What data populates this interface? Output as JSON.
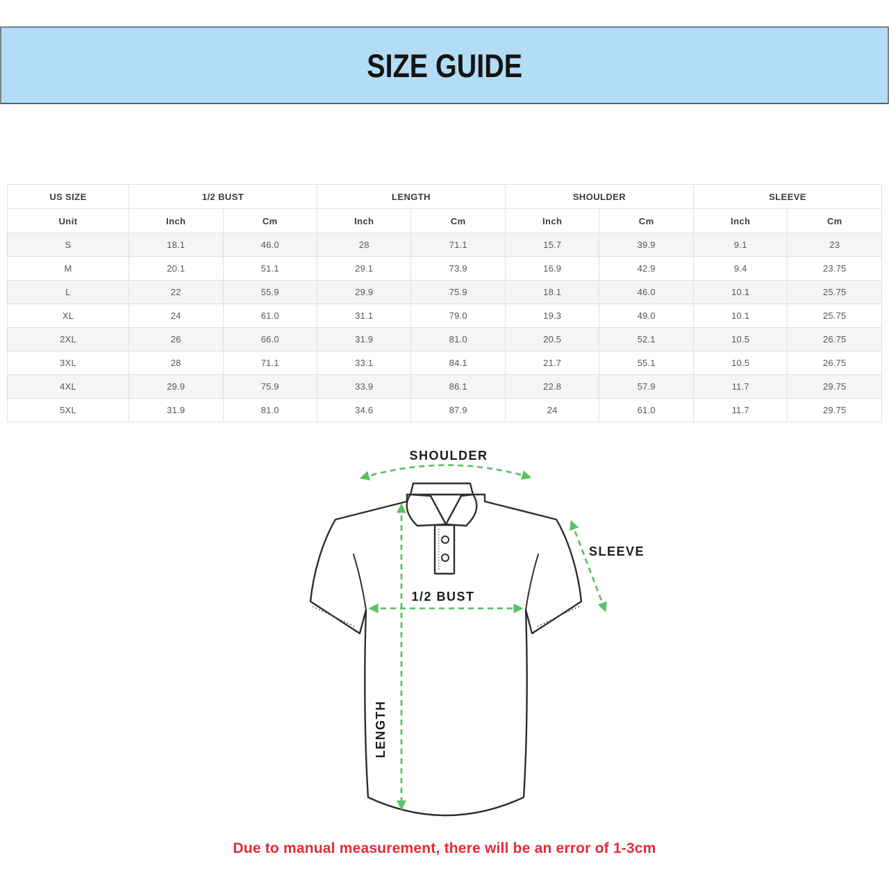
{
  "header": {
    "title": "SIZE GUIDE"
  },
  "table": {
    "groups": [
      {
        "label": "US SIZE"
      },
      {
        "label": "1/2 BUST"
      },
      {
        "label": "LENGTH"
      },
      {
        "label": "SHOULDER"
      },
      {
        "label": "SLEEVE"
      }
    ],
    "unit_row": [
      "Unit",
      "Inch",
      "Cm",
      "Inch",
      "Cm",
      "Inch",
      "Cm",
      "Inch",
      "Cm"
    ],
    "rows": [
      [
        "S",
        "18.1",
        "46.0",
        "28",
        "71.1",
        "15.7",
        "39.9",
        "9.1",
        "23"
      ],
      [
        "M",
        "20.1",
        "51.1",
        "29.1",
        "73.9",
        "16.9",
        "42.9",
        "9.4",
        "23.75"
      ],
      [
        "L",
        "22",
        "55.9",
        "29.9",
        "75.9",
        "18.1",
        "46.0",
        "10.1",
        "25.75"
      ],
      [
        "XL",
        "24",
        "61.0",
        "31.1",
        "79.0",
        "19.3",
        "49.0",
        "10.1",
        "25.75"
      ],
      [
        "2XL",
        "26",
        "66.0",
        "31.9",
        "81.0",
        "20.5",
        "52.1",
        "10.5",
        "26.75"
      ],
      [
        "3XL",
        "28",
        "71.1",
        "33.1",
        "84.1",
        "21.7",
        "55.1",
        "10.5",
        "26.75"
      ],
      [
        "4XL",
        "29.9",
        "75.9",
        "33.9",
        "86.1",
        "22.8",
        "57.9",
        "11.7",
        "29.75"
      ],
      [
        "5XL",
        "31.9",
        "81.0",
        "34.6",
        "87.9",
        "24",
        "61.0",
        "11.7",
        "29.75"
      ]
    ]
  },
  "diagram": {
    "labels": {
      "shoulder": "SHOULDER",
      "sleeve": "SLEEVE",
      "half_bust": "1/2 BUST",
      "length": "LENGTH"
    }
  },
  "footer": {
    "note": "Due to manual measurement, there will be an error of 1-3cm"
  },
  "colors": {
    "banner_bg": "#b3dcf6",
    "banner_border": "#76818b",
    "row_alt": "#f5f5f5",
    "table_border": "#dfdfdf",
    "arrow_green": "#57c166",
    "note_red": "#e32b3a"
  }
}
